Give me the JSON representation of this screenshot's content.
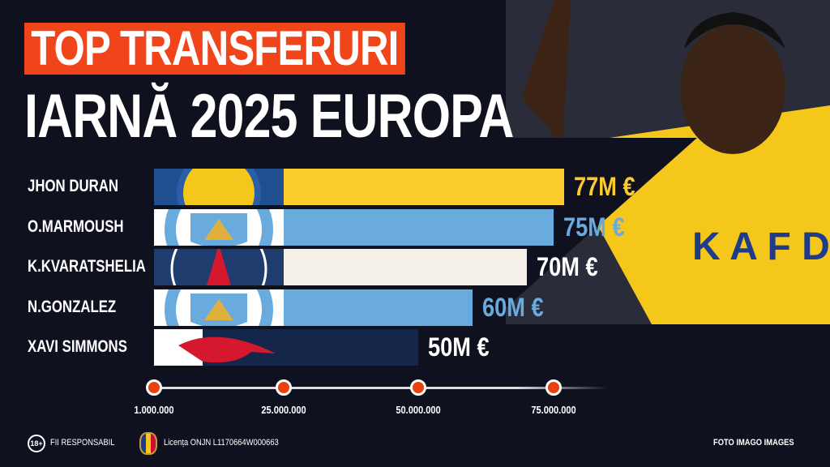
{
  "title_line1": "TOP TRANSFERURI",
  "title_line2": "IARNĂ 2025 EUROPA",
  "chart_data": {
    "type": "bar",
    "orientation": "horizontal",
    "categories": [
      "JHON DURAN",
      "O.MARMOUSH",
      "K.KVARATSHELIA",
      "N.GONZALEZ",
      "XAVI SIMMONS"
    ],
    "values": [
      77,
      75,
      70,
      60,
      50
    ],
    "value_labels": [
      "77M €",
      "75M €",
      "70M €",
      "60M €",
      "50M €"
    ],
    "bar_colors": [
      "#fccb2e",
      "#6aabdd",
      "#f4f0e8",
      "#6aabdd",
      "#14274a"
    ],
    "label_colors": [
      "#fccb2e",
      "#6aabdd",
      "#ffffff",
      "#6aabdd",
      "#ffffff"
    ],
    "crests": [
      "al-nassr",
      "manchester-city",
      "psg",
      "manchester-city",
      "rb-leipzig"
    ],
    "x_ticks": [
      1000000,
      25000000,
      50000000,
      75000000
    ],
    "x_tick_labels": [
      "1.000.000",
      "25.000.000",
      "50.000.000",
      "75.000.000"
    ],
    "unit": "M €"
  },
  "footer": {
    "age_badge": "18+",
    "responsible": "FII RESPONSABIL",
    "license": "Licența ONJN L1170664W000663",
    "credit": "FOTO IMAGO IMAGES",
    "onjn_logo": "ONJN"
  },
  "colors": {
    "accent": "#f0441b",
    "background": "#10111f"
  }
}
